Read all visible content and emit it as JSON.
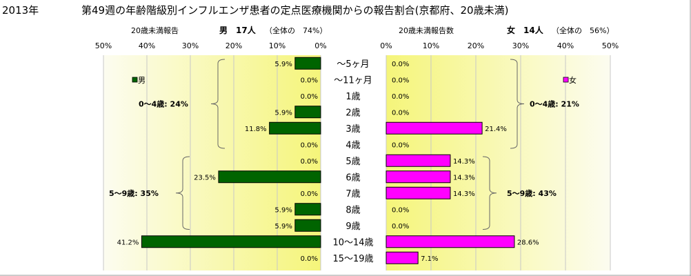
{
  "title": {
    "year": "2013年",
    "main": "第49週の年齢階級別インフルエンザ患者の定点医療機関からの報告割合(京都府、20歳未満)"
  },
  "headers": {
    "male_caption": "20歳未満報告",
    "male_summary": "男　17人",
    "male_share": "（全体の　74%）",
    "female_caption": "20歳未満報告数",
    "female_summary": "女　14人",
    "female_share": "（全体の　56%）"
  },
  "colors": {
    "male": "#006400",
    "female": "#ff00ff",
    "plot_bg_edge": "#fcfcf0",
    "plot_bg_center": "#f5f57a"
  },
  "chart_data": [
    {
      "type": "bar",
      "orientation": "horizontal-reversed",
      "legend": "男",
      "legend_position": "top-left",
      "axis_ticks": [
        "50%",
        "40%",
        "30%",
        "20%",
        "10%",
        "0%"
      ],
      "xlim": [
        0,
        50
      ],
      "grid": true,
      "categories": [
        "〜5ヶ月",
        "〜11ヶ月",
        "1歳",
        "2歳",
        "3歳",
        "4歳",
        "5歳",
        "6歳",
        "7歳",
        "8歳",
        "9歳",
        "10〜14歳",
        "15〜19歳"
      ],
      "values": [
        5.9,
        0.0,
        0.0,
        5.9,
        11.8,
        0.0,
        0.0,
        23.5,
        0.0,
        5.9,
        5.9,
        41.2,
        0.0
      ],
      "value_labels": [
        "5.9%",
        "0.0%",
        "0.0%",
        "5.9%",
        "11.8%",
        "0.0%",
        "0.0%",
        "23.5%",
        "0.0%",
        "5.9%",
        "5.9%",
        "41.2%",
        "0.0%"
      ],
      "groups": [
        {
          "label": "0〜4歳:  24%",
          "from": 0,
          "to": 5
        },
        {
          "label": "5〜9歳:  35%",
          "from": 6,
          "to": 10
        }
      ]
    },
    {
      "type": "bar",
      "orientation": "horizontal",
      "legend": "女",
      "legend_position": "top-right",
      "axis_ticks": [
        "0%",
        "10%",
        "20%",
        "30%",
        "40%",
        "50%"
      ],
      "xlim": [
        0,
        50
      ],
      "grid": true,
      "categories": [
        "〜5ヶ月",
        "〜11ヶ月",
        "1歳",
        "2歳",
        "3歳",
        "4歳",
        "5歳",
        "6歳",
        "7歳",
        "8歳",
        "9歳",
        "10〜14歳",
        "15〜19歳"
      ],
      "values": [
        0.0,
        0.0,
        0.0,
        0.0,
        21.4,
        0.0,
        14.3,
        14.3,
        14.3,
        0.0,
        0.0,
        28.6,
        7.1
      ],
      "value_labels": [
        "0.0%",
        "0.0%",
        "0.0%",
        "0.0%",
        "21.4%",
        "0.0%",
        "14.3%",
        "14.3%",
        "14.3%",
        "0.0%",
        "0.0%",
        "28.6%",
        "7.1%"
      ],
      "groups": [
        {
          "label": "0〜4歳:  21%",
          "from": 0,
          "to": 5
        },
        {
          "label": "5〜9歳:  43%",
          "from": 6,
          "to": 10
        }
      ]
    }
  ]
}
